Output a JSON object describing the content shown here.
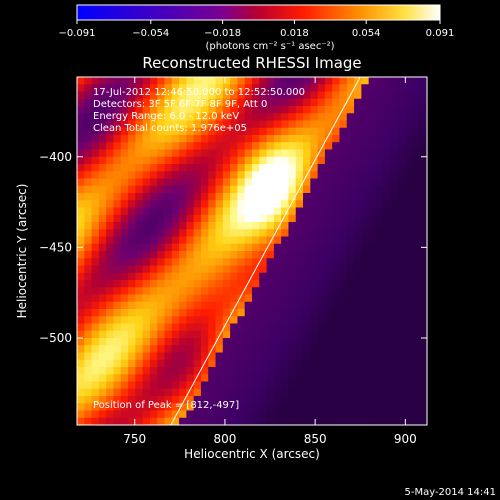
{
  "chart_data": {
    "type": "heatmap",
    "title": "Reconstructed RHESSI Image",
    "xlabel": "Heliocentric X (arcsec)",
    "ylabel": "Heliocentric Y (arcsec)",
    "xlim": [
      718,
      912
    ],
    "ylim": [
      -548,
      -356
    ],
    "x_ticks": [
      750,
      800,
      850,
      900
    ],
    "y_ticks": [
      -400,
      -450,
      -500
    ],
    "annotations": {
      "time_range": "17-Jul-2012 12:46:50.000 to 12:52:50.000",
      "detectors": "Detectors: 3F 5F 6F 7F 8F 9F, Att 0",
      "energy": "Energy Range: 6.0 - 12.0 keV",
      "clean": "Clean     Total counts: 1.976e+05",
      "peak": "Position of Peak = [812,-497]"
    },
    "peak": [
      812,
      -497
    ],
    "limb_line": [
      [
        770,
        -548
      ],
      [
        875,
        -356
      ]
    ],
    "colorbar": {
      "min": -0.091,
      "max": 0.091,
      "ticks": [
        "-0.091",
        "-0.054",
        "-0.018",
        "0.018",
        "0.054",
        "0.091"
      ],
      "label": "(photons cm⁻² s⁻¹ asec⁻²)"
    }
  },
  "footer": {
    "date": "5-May-2014 14:41"
  }
}
